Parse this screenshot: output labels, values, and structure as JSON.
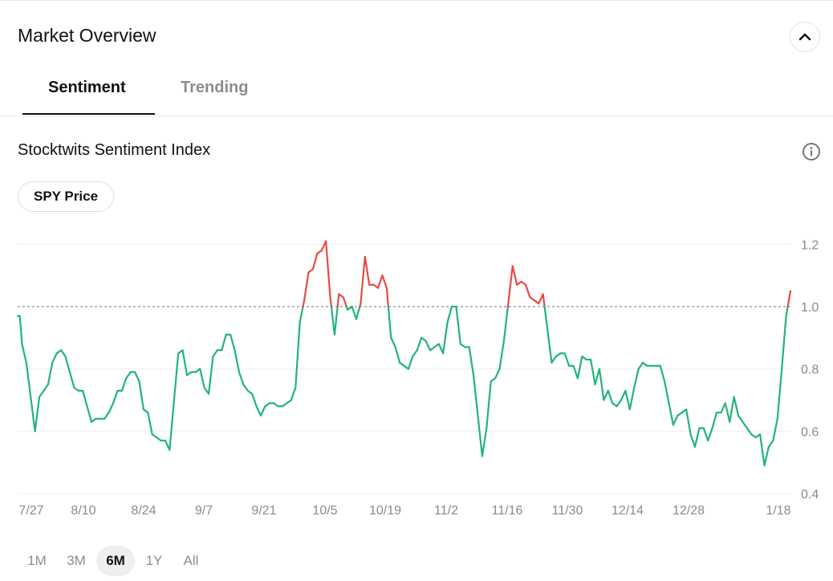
{
  "header": {
    "title": "Market Overview",
    "collapse_icon": "chevron-up-icon"
  },
  "tabs": [
    {
      "label": "Sentiment",
      "active": true
    },
    {
      "label": "Trending",
      "active": false
    }
  ],
  "section": {
    "title": "Stocktwits Sentiment Index",
    "info_icon": "info-icon",
    "overlay_button": "SPY Price"
  },
  "range_selector": [
    {
      "label": "1M",
      "active": false
    },
    {
      "label": "3M",
      "active": false
    },
    {
      "label": "6M",
      "active": true
    },
    {
      "label": "1Y",
      "active": false
    },
    {
      "label": "All",
      "active": false
    }
  ],
  "colors": {
    "above_threshold": "#e84a45",
    "below_threshold": "#22b47a",
    "gridline": "#eeeeee",
    "reference_line": "#9a9a9a"
  },
  "chart_data": {
    "type": "line",
    "title": "Stocktwits Sentiment Index",
    "xlabel": "",
    "ylabel": "",
    "ylim": [
      0.4,
      1.25
    ],
    "yticks": [
      "0.4",
      "0.6",
      "0.8",
      "1.0",
      "1.2"
    ],
    "xticks": [
      "7/27",
      "8/10",
      "8/24",
      "9/7",
      "9/21",
      "10/5",
      "10/19",
      "11/2",
      "11/16",
      "11/30",
      "12/14",
      "12/28",
      "1/18"
    ],
    "reference_line": 1.0,
    "grid": true,
    "series": [
      {
        "points": [
          [
            0,
            0.97
          ],
          [
            0.5,
            0.97
          ],
          [
            1,
            0.88
          ],
          [
            2,
            0.82
          ],
          [
            4,
            0.6
          ],
          [
            5,
            0.71
          ],
          [
            6,
            0.73
          ],
          [
            7,
            0.75
          ],
          [
            8,
            0.82
          ],
          [
            9,
            0.85
          ],
          [
            10,
            0.86
          ],
          [
            11,
            0.84
          ],
          [
            12,
            0.79
          ],
          [
            13,
            0.74
          ],
          [
            14,
            0.73
          ],
          [
            15,
            0.73
          ],
          [
            16,
            0.68
          ],
          [
            17,
            0.63
          ],
          [
            18,
            0.64
          ],
          [
            19,
            0.64
          ],
          [
            20,
            0.64
          ],
          [
            21,
            0.66
          ],
          [
            22,
            0.69
          ],
          [
            23,
            0.73
          ],
          [
            24,
            0.73
          ],
          [
            25,
            0.77
          ],
          [
            26,
            0.79
          ],
          [
            27,
            0.79
          ],
          [
            28,
            0.76
          ],
          [
            29,
            0.67
          ],
          [
            30,
            0.66
          ],
          [
            31,
            0.59
          ],
          [
            32,
            0.58
          ],
          [
            33,
            0.57
          ],
          [
            34,
            0.57
          ],
          [
            35,
            0.54
          ],
          [
            37,
            0.85
          ],
          [
            38,
            0.86
          ],
          [
            39,
            0.78
          ],
          [
            40,
            0.79
          ],
          [
            41,
            0.79
          ],
          [
            42,
            0.8
          ],
          [
            43,
            0.74
          ],
          [
            44,
            0.72
          ],
          [
            45,
            0.84
          ],
          [
            46,
            0.86
          ],
          [
            47,
            0.86
          ],
          [
            48,
            0.91
          ],
          [
            49,
            0.91
          ],
          [
            50,
            0.86
          ],
          [
            51,
            0.79
          ],
          [
            52,
            0.75
          ],
          [
            53,
            0.73
          ],
          [
            54,
            0.72
          ],
          [
            55,
            0.68
          ],
          [
            56,
            0.65
          ],
          [
            57,
            0.68
          ],
          [
            58,
            0.69
          ],
          [
            59,
            0.69
          ],
          [
            60,
            0.68
          ],
          [
            61,
            0.68
          ],
          [
            62,
            0.69
          ],
          [
            63,
            0.7
          ],
          [
            64,
            0.74
          ],
          [
            65,
            0.95
          ],
          [
            66,
            1.02
          ],
          [
            67,
            1.11
          ],
          [
            68,
            1.12
          ],
          [
            69,
            1.17
          ],
          [
            70,
            1.18
          ],
          [
            71,
            1.21
          ],
          [
            72,
            1.03
          ],
          [
            73,
            0.91
          ],
          [
            74,
            1.04
          ],
          [
            75,
            1.03
          ],
          [
            76,
            0.99
          ],
          [
            77,
            1.0
          ],
          [
            78,
            0.96
          ],
          [
            79,
            1.01
          ],
          [
            80,
            1.16
          ],
          [
            81,
            1.07
          ],
          [
            82,
            1.07
          ],
          [
            83,
            1.06
          ],
          [
            84,
            1.1
          ],
          [
            85,
            1.06
          ],
          [
            86,
            0.9
          ],
          [
            87,
            0.87
          ],
          [
            88,
            0.82
          ],
          [
            89,
            0.81
          ],
          [
            90,
            0.8
          ],
          [
            91,
            0.84
          ],
          [
            92,
            0.86
          ],
          [
            93,
            0.9
          ],
          [
            94,
            0.89
          ],
          [
            95,
            0.86
          ],
          [
            96,
            0.87
          ],
          [
            97,
            0.88
          ],
          [
            98,
            0.85
          ],
          [
            99,
            0.95
          ],
          [
            100,
            1.0
          ],
          [
            101,
            1.0
          ],
          [
            102,
            0.88
          ],
          [
            103,
            0.87
          ],
          [
            104,
            0.87
          ],
          [
            105,
            0.78
          ],
          [
            106,
            0.65
          ],
          [
            107,
            0.52
          ],
          [
            108,
            0.61
          ],
          [
            109,
            0.76
          ],
          [
            110,
            0.77
          ],
          [
            111,
            0.8
          ],
          [
            112,
            0.89
          ],
          [
            113,
            1.01
          ],
          [
            114,
            1.13
          ],
          [
            115,
            1.07
          ],
          [
            116,
            1.08
          ],
          [
            117,
            1.07
          ],
          [
            118,
            1.03
          ],
          [
            119,
            1.02
          ],
          [
            120,
            1.01
          ],
          [
            121,
            1.04
          ],
          [
            122,
            0.93
          ],
          [
            123,
            0.82
          ],
          [
            124,
            0.84
          ],
          [
            125,
            0.85
          ],
          [
            126,
            0.85
          ],
          [
            127,
            0.81
          ],
          [
            128,
            0.81
          ],
          [
            129,
            0.77
          ],
          [
            130,
            0.84
          ],
          [
            131,
            0.83
          ],
          [
            132,
            0.83
          ],
          [
            133,
            0.75
          ],
          [
            134,
            0.8
          ],
          [
            135,
            0.7
          ],
          [
            136,
            0.73
          ],
          [
            137,
            0.69
          ],
          [
            138,
            0.68
          ],
          [
            139,
            0.7
          ],
          [
            140,
            0.73
          ],
          [
            141,
            0.67
          ],
          [
            142,
            0.74
          ],
          [
            143,
            0.8
          ],
          [
            144,
            0.82
          ],
          [
            145,
            0.81
          ],
          [
            146,
            0.81
          ],
          [
            147,
            0.81
          ],
          [
            148,
            0.81
          ],
          [
            149,
            0.76
          ],
          [
            150,
            0.69
          ],
          [
            151,
            0.62
          ],
          [
            152,
            0.65
          ],
          [
            153,
            0.66
          ],
          [
            154,
            0.67
          ],
          [
            155,
            0.59
          ],
          [
            156,
            0.55
          ],
          [
            157,
            0.61
          ],
          [
            158,
            0.61
          ],
          [
            159,
            0.57
          ],
          [
            160,
            0.61
          ],
          [
            161,
            0.66
          ],
          [
            162,
            0.66
          ],
          [
            163,
            0.69
          ],
          [
            164,
            0.63
          ],
          [
            165,
            0.71
          ],
          [
            166,
            0.65
          ],
          [
            167,
            0.63
          ],
          [
            168,
            0.61
          ],
          [
            169,
            0.59
          ],
          [
            170,
            0.58
          ],
          [
            171,
            0.59
          ],
          [
            172,
            0.49
          ],
          [
            173,
            0.55
          ],
          [
            174,
            0.57
          ],
          [
            175,
            0.64
          ],
          [
            176,
            0.8
          ],
          [
            177,
            0.97
          ],
          [
            178,
            1.05
          ]
        ]
      }
    ]
  }
}
